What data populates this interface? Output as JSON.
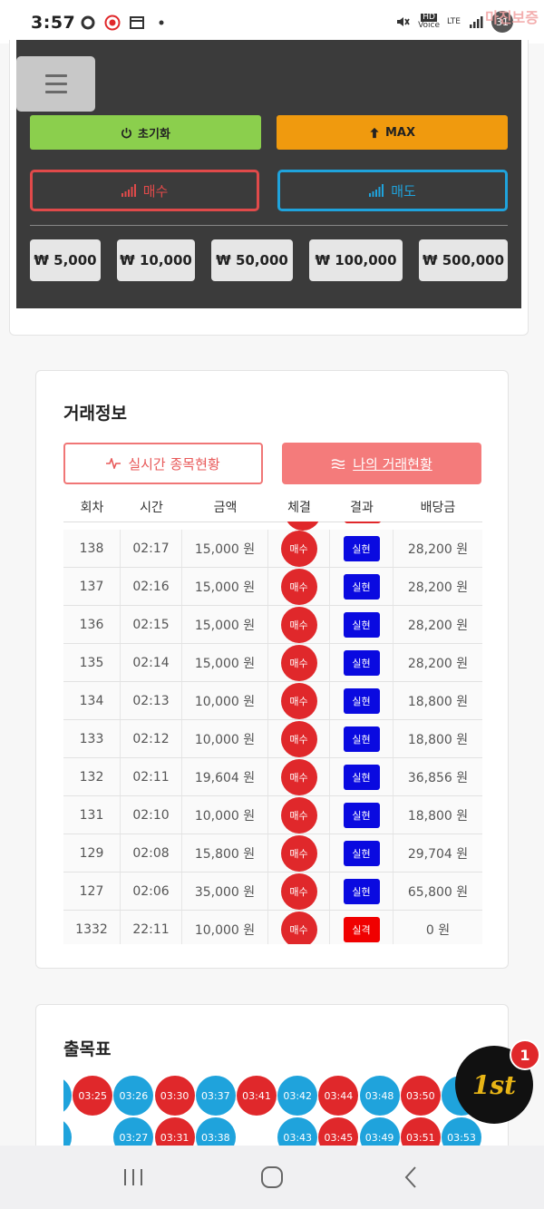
{
  "status_bar": {
    "time": "3:57",
    "lte_label": "LTE",
    "hd_label": "HD",
    "voice_label": "Voice",
    "battery": "31",
    "watermark": "마진보증"
  },
  "controls": {
    "reset_label": "초기화",
    "max_label": "MAX",
    "buy_label": "매수",
    "sell_label": "매도",
    "amounts": [
      "₩ 5,000",
      "₩ 10,000",
      "₩ 50,000",
      "₩ 100,000",
      "₩ 500,000"
    ]
  },
  "trade_info": {
    "title": "거래정보",
    "tab_live": "실시간 종목현황",
    "tab_mine": "나의 거래현황",
    "columns": [
      "회차",
      "시간",
      "금액",
      "체결",
      "결과",
      "배당금"
    ],
    "rows": [
      {
        "round": "138",
        "time": "02:17",
        "amount": "15,000 원",
        "side": "매수",
        "result": "실현",
        "payout": "28,200 원"
      },
      {
        "round": "137",
        "time": "02:16",
        "amount": "15,000 원",
        "side": "매수",
        "result": "실현",
        "payout": "28,200 원"
      },
      {
        "round": "136",
        "time": "02:15",
        "amount": "15,000 원",
        "side": "매수",
        "result": "실현",
        "payout": "28,200 원"
      },
      {
        "round": "135",
        "time": "02:14",
        "amount": "15,000 원",
        "side": "매수",
        "result": "실현",
        "payout": "28,200 원"
      },
      {
        "round": "134",
        "time": "02:13",
        "amount": "10,000 원",
        "side": "매수",
        "result": "실현",
        "payout": "18,800 원"
      },
      {
        "round": "133",
        "time": "02:12",
        "amount": "10,000 원",
        "side": "매수",
        "result": "실현",
        "payout": "18,800 원"
      },
      {
        "round": "132",
        "time": "02:11",
        "amount": "19,604 원",
        "side": "매수",
        "result": "실현",
        "payout": "36,856 원"
      },
      {
        "round": "131",
        "time": "02:10",
        "amount": "10,000 원",
        "side": "매수",
        "result": "실현",
        "payout": "18,800 원"
      },
      {
        "round": "129",
        "time": "02:08",
        "amount": "15,800 원",
        "side": "매수",
        "result": "실현",
        "payout": "29,704 원"
      },
      {
        "round": "127",
        "time": "02:06",
        "amount": "35,000 원",
        "side": "매수",
        "result": "실현",
        "payout": "65,800 원"
      },
      {
        "round": "1332",
        "time": "22:11",
        "amount": "10,000 원",
        "side": "매수",
        "result": "실격",
        "payout": "0 원"
      }
    ],
    "colors": {
      "buy": "#e0282b",
      "success": "#0a0ae0",
      "fail": "#f00000"
    }
  },
  "board": {
    "title": "출목표",
    "columns": [
      {
        "top": {
          "label": "",
          "color": "blue"
        },
        "bottom": {
          "label": "",
          "color": "blue"
        }
      },
      {
        "top": {
          "label": "03:25",
          "color": "red"
        },
        "bottom": null
      },
      {
        "top": {
          "label": "03:26",
          "color": "blue"
        },
        "bottom": {
          "label": "03:27",
          "color": "blue"
        }
      },
      {
        "top": {
          "label": "03:30",
          "color": "red"
        },
        "bottom": {
          "label": "03:31",
          "color": "red"
        }
      },
      {
        "top": {
          "label": "03:37",
          "color": "blue"
        },
        "bottom": {
          "label": "03:38",
          "color": "blue"
        }
      },
      {
        "top": {
          "label": "03:41",
          "color": "red"
        },
        "bottom": null
      },
      {
        "top": {
          "label": "03:42",
          "color": "blue"
        },
        "bottom": {
          "label": "03:43",
          "color": "blue"
        }
      },
      {
        "top": {
          "label": "03:44",
          "color": "red"
        },
        "bottom": {
          "label": "03:45",
          "color": "red"
        }
      },
      {
        "top": {
          "label": "03:48",
          "color": "blue"
        },
        "bottom": {
          "label": "03:49",
          "color": "blue"
        }
      },
      {
        "top": {
          "label": "03:50",
          "color": "red"
        },
        "bottom": {
          "label": "03:51",
          "color": "red"
        }
      },
      {
        "top": {
          "label": "",
          "color": "blue"
        },
        "bottom": {
          "label": "03:53",
          "color": "blue"
        }
      }
    ]
  },
  "floating_badge": {
    "label": "1st",
    "count": "1"
  }
}
